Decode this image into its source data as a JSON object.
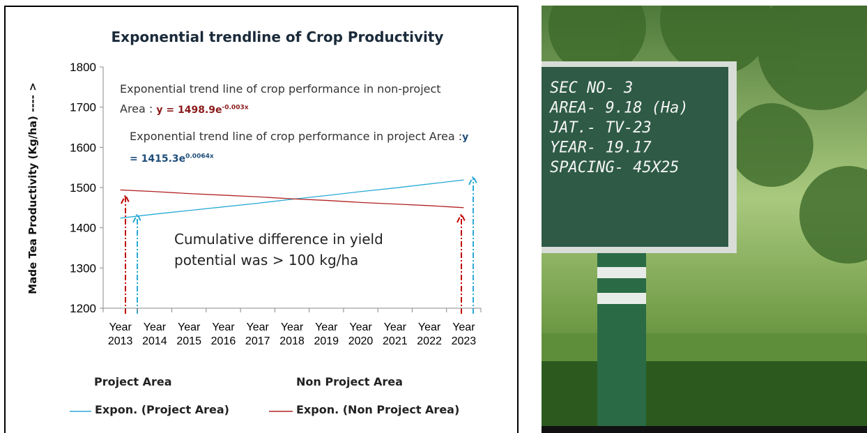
{
  "chart_data": {
    "type": "line",
    "title": "Exponential trendline of  Crop Productivity",
    "y_label": "Made Tea Productivity (Kg/ha) ---- >",
    "categories": [
      "Year 2013",
      "Year 2014",
      "Year 2015",
      "Year 2016",
      "Year 2017",
      "Year 2018",
      "Year 2019",
      "Year 2020",
      "Year 2021",
      "Year 2022",
      "Year 2023"
    ],
    "legend": [
      "Project Area",
      "Non Project Area"
    ],
    "series": [
      {
        "name": "Expon. (Project Area)",
        "color": "#2aa9d6",
        "values": [
          1424,
          1434,
          1443,
          1452,
          1461,
          1471,
          1480,
          1490,
          1499,
          1509,
          1519
        ]
      },
      {
        "name": "Expon. (Non Project Area)",
        "color": "#b22222",
        "values": [
          1494,
          1490,
          1485,
          1481,
          1477,
          1472,
          1468,
          1463,
          1459,
          1455,
          1450
        ]
      }
    ],
    "ylim": [
      1200,
      1800
    ],
    "yticks": [
      1200,
      1300,
      1400,
      1500,
      1600,
      1700,
      1800
    ],
    "annotations": [
      {
        "text": "Exponential trend line of crop performance in non-project Area : ",
        "equation": "y = 1498.9e",
        "exponent": "-0.003x"
      },
      {
        "text": "Exponential trend line of crop performance in project Area :",
        "equation": "y = 1415.3e",
        "exponent": "0.0064x"
      },
      {
        "text": "Cumulative difference in yield potential was > 100 kg/ha"
      }
    ]
  },
  "photo": {
    "sign_lines": [
      "SEC  NO- 3",
      "AREA- 9.18 (Ha)",
      "JAT.- TV-23",
      "YEAR-  19.17",
      "SPACING- 45X25"
    ]
  }
}
